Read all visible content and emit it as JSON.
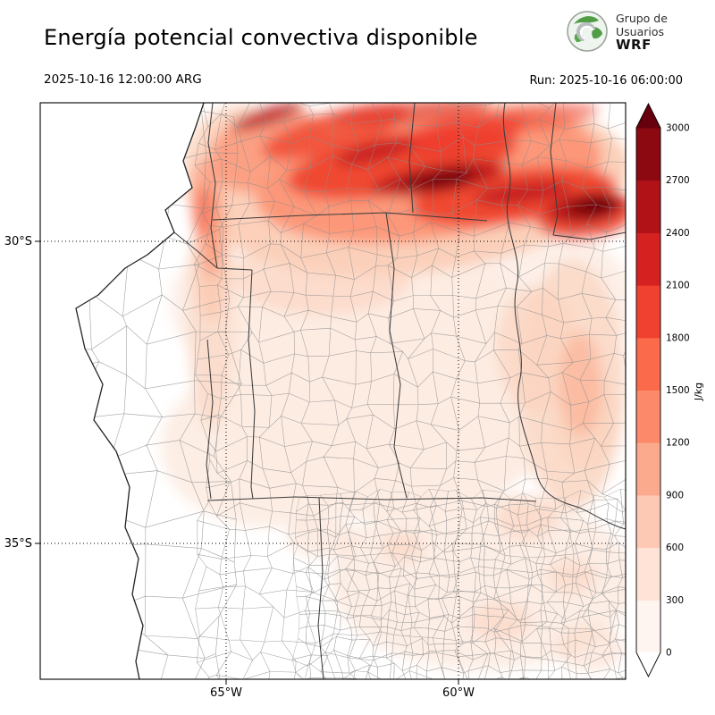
{
  "header": {
    "title": "Energía potencial convectiva disponible",
    "valid_time": "2025-10-16 12:00:00 ARG",
    "run_label": "Run: 2025-10-16 06:00:00",
    "logo": {
      "line1": "Grupo de",
      "line2": "Usuarios",
      "line3": "WRF"
    }
  },
  "axes": {
    "lat_labels": [
      "30°S",
      "35°S"
    ],
    "lon_labels": [
      "65°W",
      "60°W"
    ]
  },
  "colorbar": {
    "unit": "J/kg",
    "ticks": [
      "3000",
      "2700",
      "2400",
      "2100",
      "1800",
      "1500",
      "1200",
      "900",
      "600",
      "300",
      "0"
    ],
    "colors_low_to_high": [
      "#fff5f0",
      "#fee3d6",
      "#fdc9b4",
      "#fcaa8d",
      "#fc8a6a",
      "#fb6a4a",
      "#f0402f",
      "#d52221",
      "#b11218",
      "#8c0912"
    ],
    "extend_high_color": "#67000d",
    "extend_low_color": "#ffffff"
  },
  "chart_data": {
    "type": "heatmap",
    "title": "Energía potencial convectiva disponible",
    "variable": "CAPE",
    "units": "J/kg",
    "valid_time": "2025-10-16 12:00:00 ARG",
    "run": "2025-10-16 06:00:00",
    "colorbar_ticks": [
      0,
      300,
      600,
      900,
      1200,
      1500,
      1800,
      2100,
      2400,
      2700,
      3000
    ],
    "lat_gridlines": [
      "30°S",
      "35°S"
    ],
    "lon_gridlines": [
      "65°W",
      "60°W"
    ],
    "summary": "CAPE field over central-northern Argentina: maxima near 2700–3000 J/kg in an east-west band across the north of the domain; light values (0–600) over the center and south; near zero in the southwest."
  }
}
